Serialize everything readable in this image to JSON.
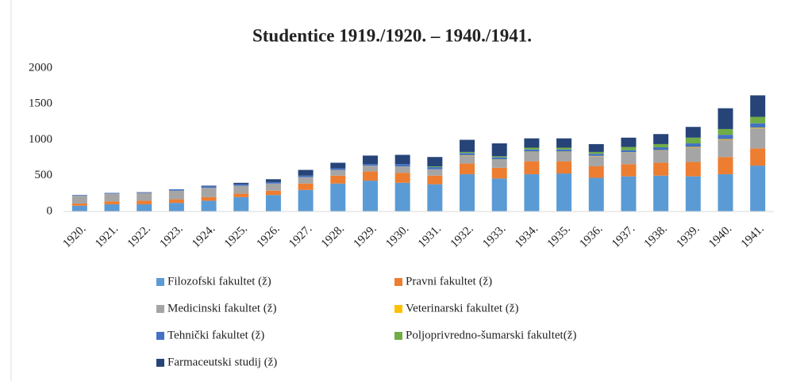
{
  "chart_data": {
    "type": "stacked_bar",
    "title": "Studentice 1919./1920. – 1940./1941.",
    "categories": [
      "1920.",
      "1921.",
      "1922.",
      "1923.",
      "1924.",
      "1925.",
      "1926.",
      "1927.",
      "1928.",
      "1929.",
      "1930.",
      "1931.",
      "1932.",
      "1933.",
      "1934.",
      "1935.",
      "1936.",
      "1937.",
      "1938.",
      "1939.",
      "1940.",
      "1941."
    ],
    "series": [
      {
        "name": "Filozofski fakultet (ž)",
        "color": "#5b9bd5",
        "values": [
          80,
          100,
          100,
          120,
          150,
          200,
          230,
          300,
          390,
          430,
          400,
          380,
          520,
          460,
          520,
          530,
          470,
          490,
          500,
          490,
          520,
          640
        ]
      },
      {
        "name": "Pravni fakultet (ž)",
        "color": "#ed7d31",
        "values": [
          30,
          40,
          50,
          50,
          50,
          50,
          60,
          90,
          110,
          130,
          140,
          120,
          150,
          150,
          180,
          170,
          160,
          170,
          180,
          200,
          240,
          240
        ]
      },
      {
        "name": "Medicinski fakultet (ž)",
        "color": "#a5a5a5",
        "values": [
          110,
          110,
          110,
          120,
          130,
          110,
          100,
          90,
          80,
          80,
          90,
          90,
          110,
          110,
          130,
          130,
          140,
          160,
          170,
          200,
          240,
          280
        ]
      },
      {
        "name": "Veterinarski fakultet (ž)",
        "color": "#ffc000",
        "values": [
          0,
          0,
          0,
          0,
          0,
          0,
          0,
          0,
          0,
          0,
          0,
          0,
          5,
          5,
          5,
          5,
          5,
          5,
          5,
          10,
          10,
          10
        ]
      },
      {
        "name": "Tehnički fakultet (ž)",
        "color": "#4472c4",
        "values": [
          10,
          10,
          10,
          20,
          20,
          20,
          20,
          20,
          20,
          20,
          30,
          30,
          30,
          30,
          30,
          30,
          30,
          30,
          40,
          50,
          60,
          60
        ]
      },
      {
        "name": "Poljoprivredno-šumarski fakultet(ž)",
        "color": "#70ad47",
        "values": [
          0,
          0,
          0,
          0,
          0,
          0,
          0,
          0,
          0,
          0,
          0,
          10,
          15,
          15,
          25,
          25,
          25,
          45,
          45,
          80,
          80,
          90
        ]
      },
      {
        "name": "Farmaceutski studij (ž)",
        "color": "#264478",
        "values": [
          0,
          0,
          0,
          0,
          10,
          20,
          40,
          80,
          80,
          120,
          130,
          130,
          170,
          180,
          130,
          130,
          110,
          130,
          140,
          150,
          290,
          300
        ]
      }
    ],
    "ylim": [
      0,
      2000
    ],
    "yticks": [
      0,
      500,
      1000,
      1500,
      2000
    ],
    "grid": false
  }
}
